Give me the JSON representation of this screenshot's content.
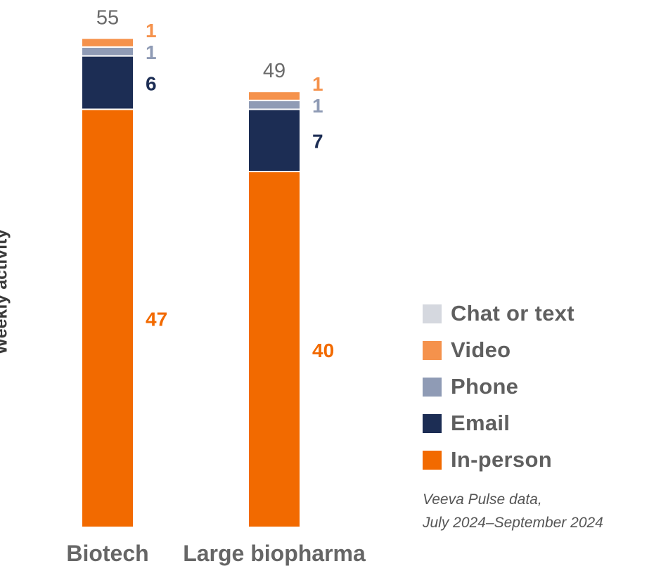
{
  "chart_data": {
    "type": "bar",
    "stacked": true,
    "ylabel": "Weekly activity",
    "categories": [
      "Biotech",
      "Large biopharma"
    ],
    "totals": [
      55,
      49
    ],
    "series": [
      {
        "name": "In-person",
        "color": "#f26a00",
        "values": [
          47,
          40
        ],
        "label_color": "#f26a00"
      },
      {
        "name": "Email",
        "color": "#1c2d54",
        "values": [
          6,
          7
        ],
        "label_color": "#1c2d54"
      },
      {
        "name": "Phone",
        "color": "#8f9bb5",
        "values": [
          1,
          1
        ],
        "label_color": "#8f9bb5"
      },
      {
        "name": "Video",
        "color": "#f5924c",
        "values": [
          1,
          1
        ],
        "label_color": "#f5924c"
      },
      {
        "name": "Chat or text",
        "color": "#d5d8df",
        "values": [
          0,
          0
        ],
        "label_color": "#d5d8df"
      }
    ],
    "legend_order": [
      "Chat or text",
      "Video",
      "Phone",
      "Email",
      "In-person"
    ],
    "legend_position": "right",
    "grid": false
  },
  "note": {
    "line1": "Veeva Pulse data,",
    "line2": "July 2024–September 2024"
  }
}
